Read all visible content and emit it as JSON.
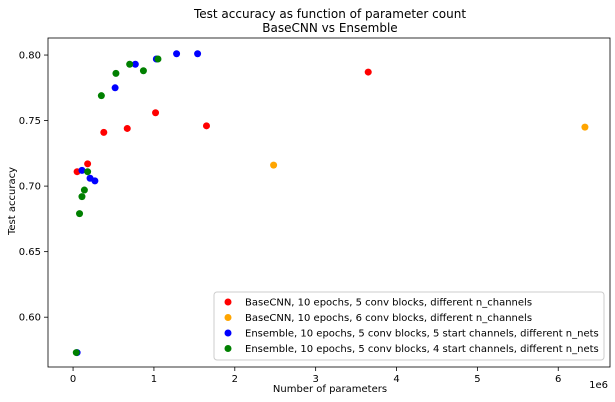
{
  "chart_data": {
    "type": "scatter",
    "title": "Test accuracy as function of parameter count",
    "subtitle": "BaseCNN vs Ensemble",
    "xlabel": "Number of parameters",
    "ylabel": "Test accuracy",
    "x_offset_label": "1e6",
    "xlim": [
      -0.31,
      6.64
    ],
    "ylim": [
      0.562,
      0.813
    ],
    "x_ticks": [
      0,
      1,
      2,
      3,
      4,
      5,
      6
    ],
    "x_tick_labels": [
      "0",
      "1",
      "2",
      "3",
      "4",
      "5",
      "6"
    ],
    "y_ticks": [
      0.6,
      0.65,
      0.7,
      0.75,
      0.8
    ],
    "y_tick_labels": [
      "0.60",
      "0.65",
      "0.70",
      "0.75",
      "0.80"
    ],
    "grid": false,
    "legend_position": "lower-right",
    "series": [
      {
        "name": "BaseCNN, 10 epochs, 5 conv blocks, different n_channels",
        "color": "#ff0000",
        "points": [
          {
            "x": 0.05,
            "y": 0.711
          },
          {
            "x": 0.18,
            "y": 0.717
          },
          {
            "x": 0.38,
            "y": 0.741
          },
          {
            "x": 0.67,
            "y": 0.744
          },
          {
            "x": 1.02,
            "y": 0.756
          },
          {
            "x": 1.65,
            "y": 0.746
          },
          {
            "x": 3.65,
            "y": 0.787
          }
        ]
      },
      {
        "name": "BaseCNN, 10 epochs, 6 conv blocks, different n_channels",
        "color": "#ffa500",
        "points": [
          {
            "x": 2.48,
            "y": 0.716
          },
          {
            "x": 6.33,
            "y": 0.745
          }
        ]
      },
      {
        "name": "Ensemble, 10 epochs, 5 conv blocks, 5 start channels, different n_nets",
        "color": "#0000ff",
        "points": [
          {
            "x": 0.05,
            "y": 0.573
          },
          {
            "x": 0.11,
            "y": 0.712
          },
          {
            "x": 0.21,
            "y": 0.706
          },
          {
            "x": 0.27,
            "y": 0.704
          },
          {
            "x": 0.52,
            "y": 0.775
          },
          {
            "x": 0.77,
            "y": 0.793
          },
          {
            "x": 1.03,
            "y": 0.797
          },
          {
            "x": 1.28,
            "y": 0.801
          },
          {
            "x": 1.54,
            "y": 0.801
          }
        ]
      },
      {
        "name": "Ensemble, 10 epochs, 5 conv blocks, 4 start channels, different n_nets",
        "color": "#008000",
        "points": [
          {
            "x": 0.04,
            "y": 0.573
          },
          {
            "x": 0.08,
            "y": 0.679
          },
          {
            "x": 0.11,
            "y": 0.692
          },
          {
            "x": 0.14,
            "y": 0.697
          },
          {
            "x": 0.18,
            "y": 0.711
          },
          {
            "x": 0.35,
            "y": 0.769
          },
          {
            "x": 0.53,
            "y": 0.786
          },
          {
            "x": 0.7,
            "y": 0.793
          },
          {
            "x": 0.87,
            "y": 0.788
          },
          {
            "x": 1.05,
            "y": 0.797
          }
        ]
      }
    ]
  }
}
